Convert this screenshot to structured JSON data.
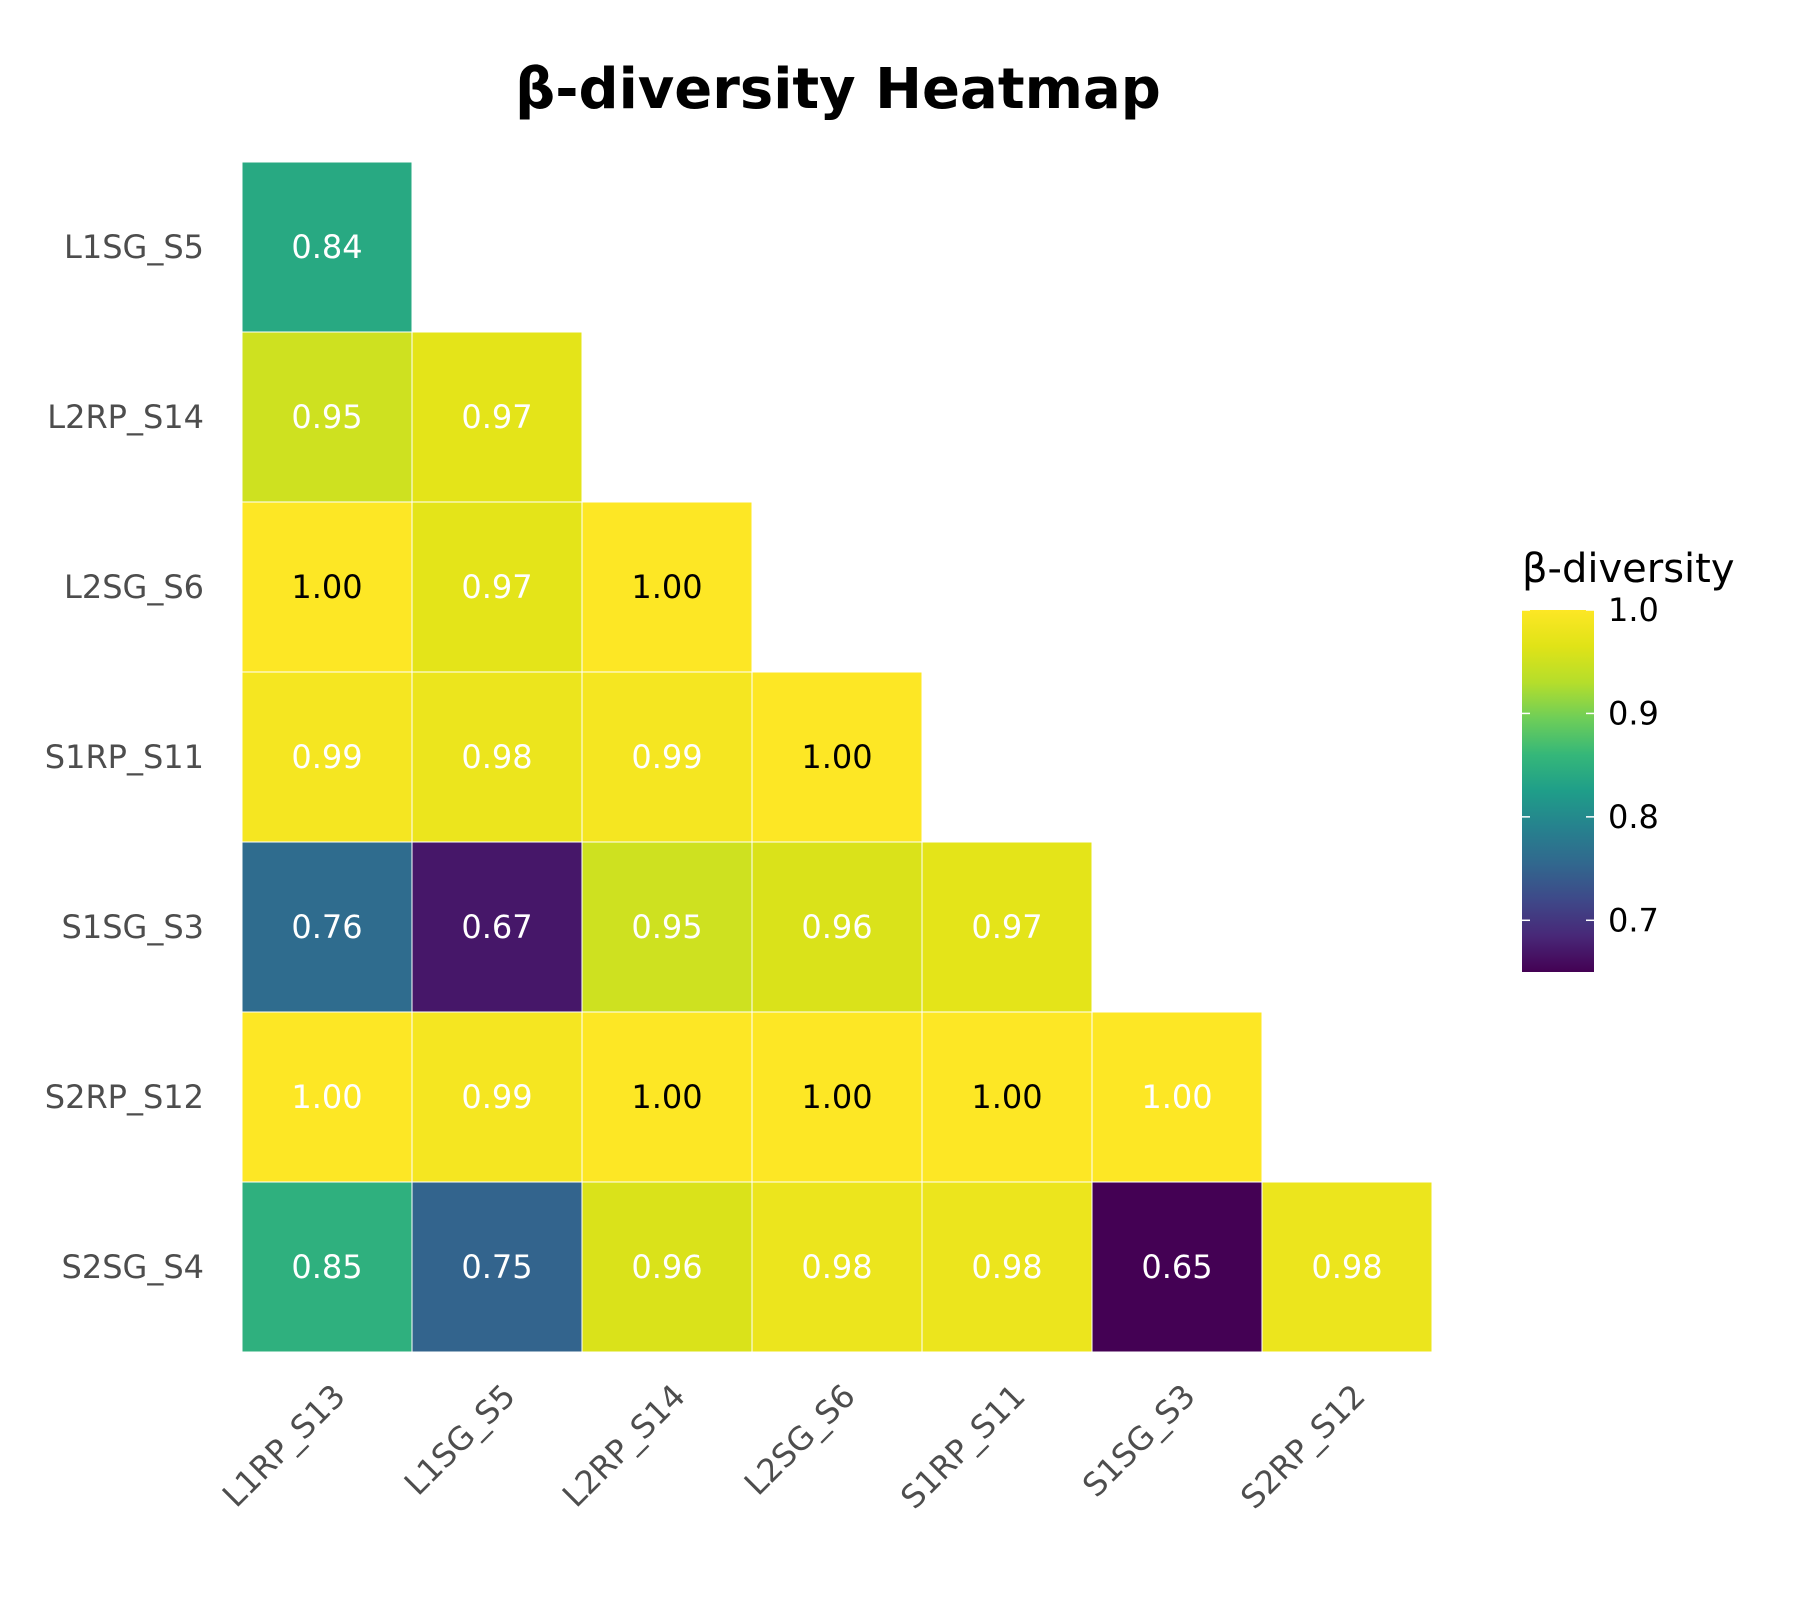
{
  "chart_data": {
    "type": "heatmap",
    "title": "β-diversity Heatmap",
    "x_labels": [
      "L1RP_S13",
      "L1SG_S5",
      "L2RP_S14",
      "L2SG_S6",
      "S1RP_S11",
      "S1SG_S3",
      "S2RP_S12"
    ],
    "y_labels": [
      "L1SG_S5",
      "L2RP_S14",
      "L2SG_S6",
      "S1RP_S11",
      "S1SG_S3",
      "S2RP_S12",
      "S2SG_S4"
    ],
    "values": [
      [
        0.84,
        null,
        null,
        null,
        null,
        null,
        null
      ],
      [
        0.95,
        0.97,
        null,
        null,
        null,
        null,
        null
      ],
      [
        1.0,
        0.97,
        1.0,
        null,
        null,
        null,
        null
      ],
      [
        0.99,
        0.98,
        0.99,
        1.0,
        null,
        null,
        null
      ],
      [
        0.76,
        0.67,
        0.95,
        0.96,
        0.97,
        null,
        null
      ],
      [
        1.0,
        0.99,
        1.0,
        1.0,
        1.0,
        1.0,
        null
      ],
      [
        0.85,
        0.75,
        0.96,
        0.98,
        0.98,
        0.65,
        0.98
      ]
    ],
    "labels": [
      [
        "0.84",
        "",
        "",
        "",
        "",
        "",
        ""
      ],
      [
        "0.95",
        "0.97",
        "",
        "",
        "",
        "",
        ""
      ],
      [
        "1.00",
        "0.97",
        "1.00",
        "",
        "",
        "",
        ""
      ],
      [
        "0.99",
        "0.98",
        "0.99",
        "1.00",
        "",
        "",
        ""
      ],
      [
        "0.76",
        "0.67",
        "0.95",
        "0.96",
        "0.97",
        "",
        ""
      ],
      [
        "1.00",
        "0.99",
        "1.00",
        "1.00",
        "1.00",
        "1.00",
        ""
      ],
      [
        "0.85",
        "0.75",
        "0.96",
        "0.98",
        "0.98",
        "0.65",
        "0.98"
      ]
    ],
    "dark_text_cells": [
      [
        2,
        0
      ],
      [
        2,
        2
      ],
      [
        3,
        3
      ],
      [
        5,
        2
      ],
      [
        5,
        3
      ],
      [
        5,
        4
      ]
    ],
    "colorbar": {
      "title": "β-diversity",
      "min": 0.65,
      "max": 1.0,
      "ticks": [
        1.0,
        0.9,
        0.8,
        0.7
      ],
      "tick_labels": [
        "1.0",
        "0.9",
        "0.8",
        "0.7"
      ],
      "colormap": "viridis"
    },
    "colors": {
      "cell_border": "#ffffff",
      "label_light": "#ffffff",
      "label_dark": "#000000"
    }
  }
}
